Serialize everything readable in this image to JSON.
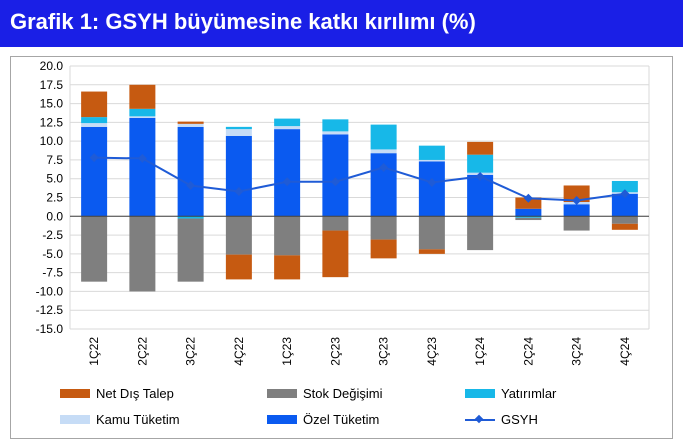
{
  "header": {
    "title": "Grafik 1: GSYH büyümesine katkı kırılımı (%)"
  },
  "colors": {
    "title_bg": "#1a1fe6",
    "net_dis_talep": "#c65a11",
    "stok_degisimi": "#7f7f7f",
    "yatirimlar": "#17b8e8",
    "kamu_tuketim": "#c6dcf6",
    "ozel_tuketim": "#0a5af0",
    "gsyh": "#1f5bd6"
  },
  "legend": {
    "net_dis_talep": "Net Dış Talep",
    "stok_degisimi": "Stok Değişimi",
    "yatirimlar": "Yatırımlar",
    "kamu_tuketim": "Kamu Tüketim",
    "ozel_tuketim": "Özel Tüketim",
    "gsyh": "GSYH"
  },
  "chart_data": {
    "type": "bar",
    "stacked": true,
    "title": "Grafik 1: GSYH büyümesine katkı kırılımı (%)",
    "categories": [
      "1Ç22",
      "2Ç22",
      "3Ç22",
      "4Ç22",
      "1Ç23",
      "2Ç23",
      "3Ç23",
      "4Ç23",
      "1Ç24",
      "2Ç24",
      "3Ç24",
      "4Ç24"
    ],
    "ylim": [
      -15,
      20
    ],
    "yticks": [
      "20.0",
      "17.5",
      "15.0",
      "12.5",
      "10.0",
      "7.5",
      "5.0",
      "2.5",
      "0.0",
      "-2.5",
      "-5.0",
      "-7.5",
      "-10.0",
      "-12.5",
      "-15.0"
    ],
    "grid": true,
    "legend_position": "bottom",
    "series": [
      {
        "name": "Özel Tüketim",
        "values": [
          11.9,
          13.1,
          11.9,
          10.7,
          11.6,
          10.9,
          8.4,
          7.3,
          5.5,
          1.0,
          1.6,
          3.0
        ]
      },
      {
        "name": "Kamu Tüketim",
        "values": [
          0.5,
          0.2,
          0.4,
          0.9,
          0.4,
          0.4,
          0.5,
          0.2,
          0.3,
          0.0,
          0.3,
          0.2
        ]
      },
      {
        "name": "Yatırımlar",
        "values": [
          0.8,
          1.0,
          -0.3,
          0.3,
          1.0,
          1.6,
          3.3,
          1.9,
          2.4,
          -0.2,
          0.0,
          1.5
        ]
      },
      {
        "name": "Stok Değişimi",
        "values": [
          -8.7,
          -10.0,
          -8.4,
          -5.1,
          -5.2,
          -1.9,
          -3.1,
          -4.4,
          -4.5,
          -0.3,
          -1.9,
          -1.0
        ]
      },
      {
        "name": "Net Dış Talep",
        "values": [
          3.4,
          3.2,
          0.3,
          -3.3,
          -3.2,
          -6.2,
          -2.5,
          -0.6,
          1.7,
          1.5,
          2.2,
          -0.8
        ]
      },
      {
        "name": "GSYH",
        "type": "line",
        "values": [
          7.8,
          7.7,
          4.1,
          3.3,
          4.6,
          4.6,
          6.5,
          4.5,
          5.3,
          2.4,
          2.1,
          3.0
        ]
      }
    ]
  }
}
